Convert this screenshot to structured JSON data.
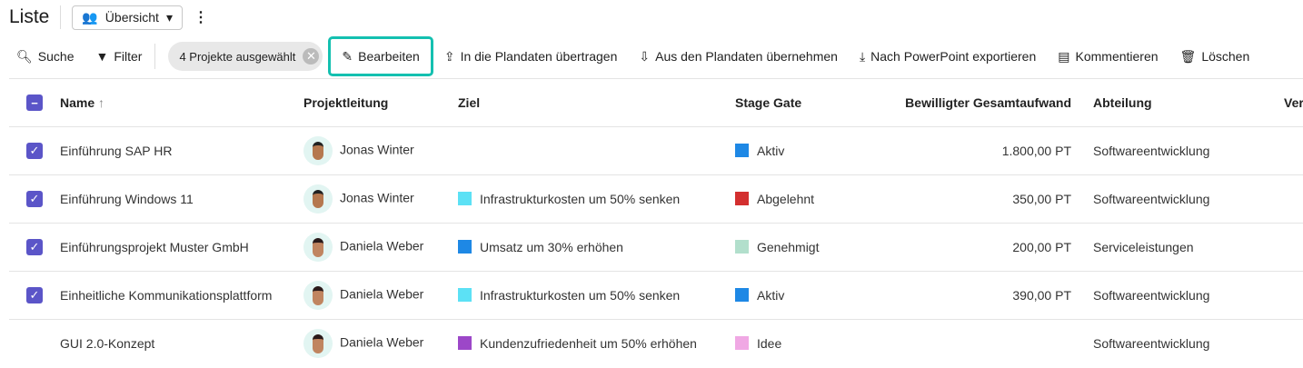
{
  "header": {
    "title": "Liste",
    "view": "Übersicht"
  },
  "toolbar": {
    "search": "Suche",
    "filter": "Filter",
    "selection": "4 Projekte ausgewählt",
    "edit": "Bearbeiten",
    "to_plan": "In die Plandaten übertragen",
    "from_plan": "Aus den Plandaten übernehmen",
    "export": "Nach PowerPoint exportieren",
    "comment": "Kommentieren",
    "delete": "Löschen"
  },
  "columns": [
    "Name",
    "Projektleitung",
    "Ziel",
    "Stage Gate",
    "Bewilligter Gesamtaufwand",
    "Abteilung",
    "Ver"
  ],
  "rows": [
    {
      "checked": true,
      "name": "Einführung SAP HR",
      "lead": "Jonas Winter",
      "goal": "",
      "goal_color": "",
      "stage": "Aktiv",
      "stage_color": "#1e88e5",
      "effort": "1.800,00 PT",
      "dept": "Softwareentwicklung"
    },
    {
      "checked": true,
      "name": "Einführung Windows 11",
      "lead": "Jonas Winter",
      "goal": "Infrastrukturkosten um 50% senken",
      "goal_color": "#5ce1f5",
      "stage": "Abgelehnt",
      "stage_color": "#d32f2f",
      "effort": "350,00 PT",
      "dept": "Softwareentwicklung"
    },
    {
      "checked": true,
      "name": "Einführungsprojekt Muster GmbH",
      "lead": "Daniela Weber",
      "goal": "Umsatz um 30% erhöhen",
      "goal_color": "#1e88e5",
      "stage": "Genehmigt",
      "stage_color": "#b2dfcc",
      "effort": "200,00 PT",
      "dept": "Serviceleistungen"
    },
    {
      "checked": true,
      "name": "Einheitliche Kommunikationsplattform",
      "lead": "Daniela Weber",
      "goal": "Infrastrukturkosten um 50% senken",
      "goal_color": "#5ce1f5",
      "stage": "Aktiv",
      "stage_color": "#1e88e5",
      "effort": "390,00 PT",
      "dept": "Softwareentwicklung"
    },
    {
      "checked": false,
      "name": "GUI 2.0-Konzept",
      "lead": "Daniela Weber",
      "goal": "Kundenzufriedenheit um 50% erhöhen",
      "goal_color": "#9c47c8",
      "stage": "Idee",
      "stage_color": "#f0a8e4",
      "effort": "",
      "dept": "Softwareentwicklung"
    }
  ]
}
